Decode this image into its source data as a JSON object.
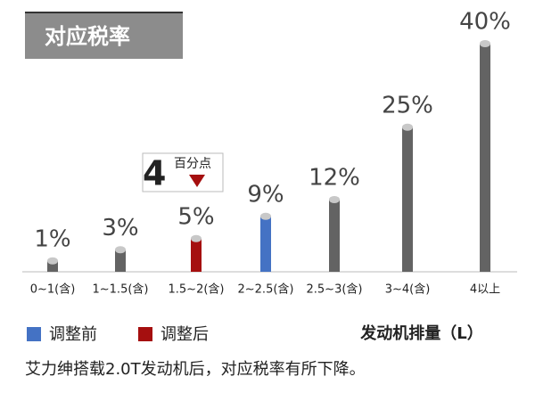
{
  "chart_data": {
    "type": "bar",
    "title": "对应税率",
    "categories": [
      "0~1(含)",
      "1~1.5(含)",
      "1.5~2(含)",
      "2~2.5(含)",
      "2.5~3(含)",
      "3~4(含)",
      "4以上"
    ],
    "values": [
      1,
      3,
      5,
      9,
      12,
      25,
      40
    ],
    "value_labels": [
      "1%",
      "3%",
      "5%",
      "9%",
      "12%",
      "25%",
      "40%"
    ],
    "colors": [
      "#636363",
      "#636363",
      "#a50f0f",
      "#4472c4",
      "#636363",
      "#636363",
      "#636363"
    ],
    "legend": [
      {
        "name": "调整前",
        "color": "#4472c4"
      },
      {
        "name": "调整后",
        "color": "#a50f0f"
      }
    ],
    "x_label": "发动机排量（L）",
    "annotation": {
      "text": "4",
      "unit": "百分点",
      "color": "#a50f0f"
    },
    "footnote": "艾力绅搭载2.0T发动机后，对应税率有所下降。"
  }
}
